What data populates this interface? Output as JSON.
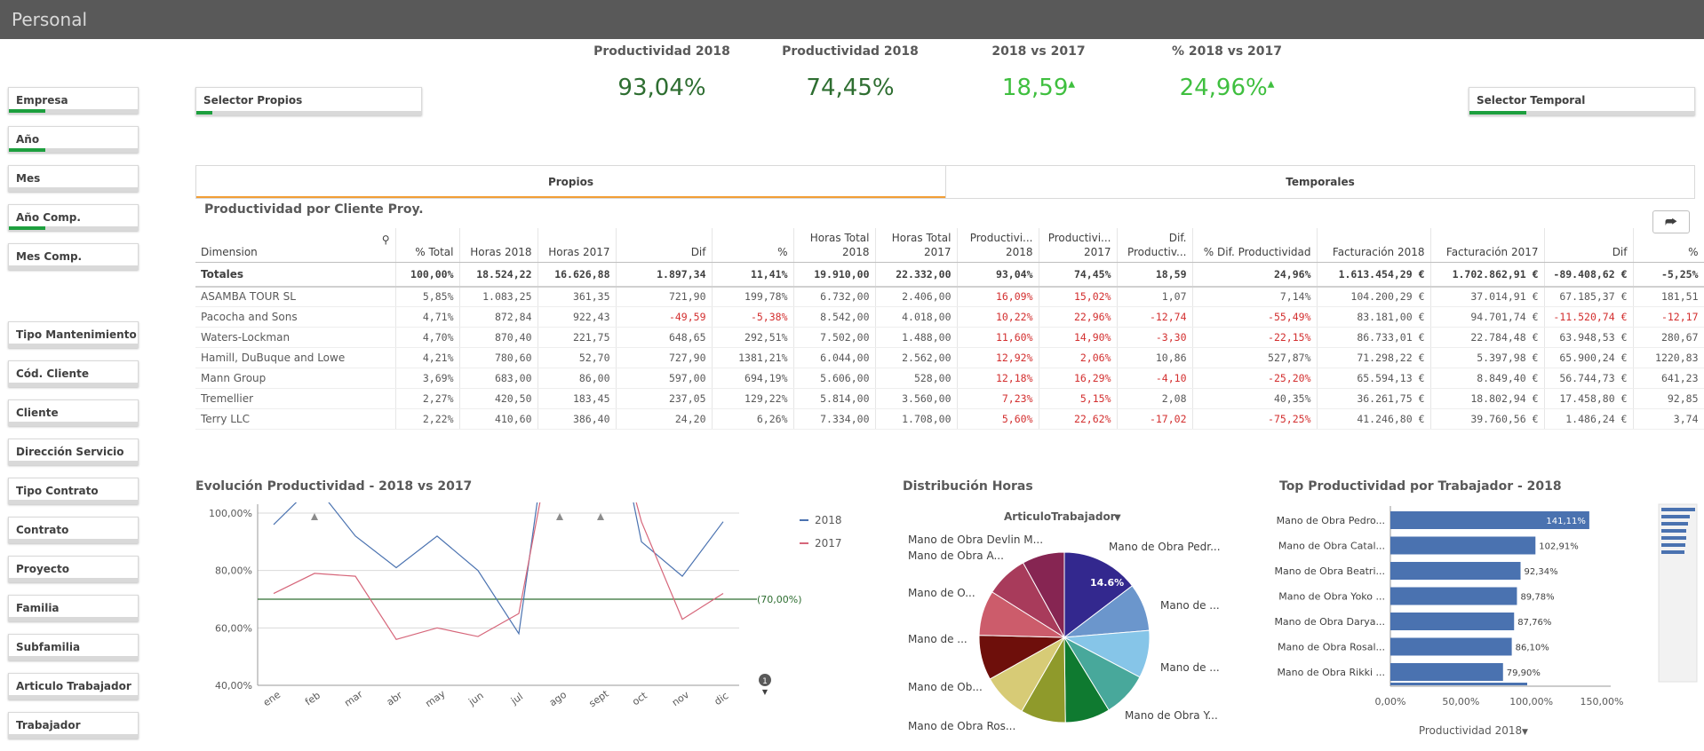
{
  "app": {
    "title": "Personal"
  },
  "filters": [
    {
      "label": "Empresa",
      "sel": 0.28
    },
    {
      "label": "Año",
      "sel": 0.28
    },
    {
      "label": "Mes",
      "sel": 0
    },
    {
      "label": "Año Comp.",
      "sel": 0.28
    },
    {
      "label": "Mes Comp.",
      "sel": 0
    },
    {
      "label": "Tipo Mantenimiento",
      "sel": 0
    },
    {
      "label": "Cód. Cliente",
      "sel": 0
    },
    {
      "label": "Cliente",
      "sel": 0
    },
    {
      "label": "Dirección Servicio",
      "sel": 0
    },
    {
      "label": "Tipo Contrato",
      "sel": 0
    },
    {
      "label": "Contrato",
      "sel": 0
    },
    {
      "label": "Proyecto",
      "sel": 0
    },
    {
      "label": "Familia",
      "sel": 0
    },
    {
      "label": "Subfamilia",
      "sel": 0
    },
    {
      "label": "Articulo Trabajador",
      "sel": 0
    },
    {
      "label": "Trabajador",
      "sel": 0
    }
  ],
  "selector_propios": "Selector Propios",
  "selector_temporal": "Selector Temporal",
  "kpis": [
    {
      "title": "Productividad 2018",
      "value": "93,04%",
      "color": "#2e6e31"
    },
    {
      "title": "Productividad 2018",
      "value": "74,45%",
      "color": "#2e6e31"
    },
    {
      "title": "2018 vs 2017",
      "value": "18,59",
      "color": "#3fbf3f",
      "arrow": "▲"
    },
    {
      "title": "% 2018 vs 2017",
      "value": "24,96%",
      "color": "#3fbf3f",
      "arrow": "▲"
    }
  ],
  "tabs": [
    "Propios",
    "Temporales"
  ],
  "table": {
    "title": "Productividad por Cliente Proy.",
    "headers": [
      "Dimension",
      "% Total",
      "Horas 2018",
      "Horas 2017",
      "Dif",
      "%",
      "Horas Total\n2018",
      "Horas Total\n2017",
      "Productivi...\n2018",
      "Productivi...\n2017",
      "Dif.\nProductiv...",
      "% Dif. Productividad",
      "Facturación 2018",
      "Facturación 2017",
      "Dif",
      "%"
    ],
    "totals": [
      "Totales",
      "100,00%",
      "18.524,22",
      "16.626,88",
      "1.897,34",
      "11,41%",
      "19.910,00",
      "22.332,00",
      "93,04%",
      "74,45%",
      "18,59",
      "24,96%",
      "1.613.454,29 €",
      "1.702.862,91 €",
      "-89.408,62 €",
      "-5,25%"
    ],
    "rows": [
      [
        "ASAMBA TOUR SL",
        "5,85%",
        "1.083,25",
        "361,35",
        "721,90",
        "199,78%",
        "6.732,00",
        "2.406,00",
        "16,09%",
        "15,02%",
        "1,07",
        "7,14%",
        "104.200,29 €",
        "37.014,91 €",
        "67.185,37 €",
        "181,51"
      ],
      [
        "Pacocha and Sons",
        "4,71%",
        "872,84",
        "922,43",
        "-49,59",
        "-5,38%",
        "8.542,00",
        "4.018,00",
        "10,22%",
        "22,96%",
        "-12,74",
        "-55,49%",
        "83.181,00 €",
        "94.701,74 €",
        "-11.520,74 €",
        "-12,17"
      ],
      [
        "Waters-Lockman",
        "4,70%",
        "870,40",
        "221,75",
        "648,65",
        "292,51%",
        "7.502,00",
        "1.488,00",
        "11,60%",
        "14,90%",
        "-3,30",
        "-22,15%",
        "86.733,01 €",
        "22.784,48 €",
        "63.948,53 €",
        "280,67"
      ],
      [
        "Hamill, DuBuque and Lowe",
        "4,21%",
        "780,60",
        "52,70",
        "727,90",
        "1381,21%",
        "6.044,00",
        "2.562,00",
        "12,92%",
        "2,06%",
        "10,86",
        "527,87%",
        "71.298,22 €",
        "5.397,98 €",
        "65.900,24 €",
        "1220,83"
      ],
      [
        "Mann Group",
        "3,69%",
        "683,00",
        "86,00",
        "597,00",
        "694,19%",
        "5.606,00",
        "528,00",
        "12,18%",
        "16,29%",
        "-4,10",
        "-25,20%",
        "65.594,13 €",
        "8.849,40 €",
        "56.744,73 €",
        "641,23"
      ],
      [
        "Tremellier",
        "2,27%",
        "420,50",
        "183,45",
        "237,05",
        "129,22%",
        "5.814,00",
        "3.560,00",
        "7,23%",
        "5,15%",
        "2,08",
        "40,35%",
        "36.261,75 €",
        "18.802,94 €",
        "17.458,80 €",
        "92,85"
      ],
      [
        "Terry LLC",
        "2,22%",
        "410,60",
        "386,40",
        "24,20",
        "6,26%",
        "7.334,00",
        "1.708,00",
        "5,60%",
        "22,62%",
        "-17,02",
        "-75,25%",
        "41.246,80 €",
        "39.760,56 €",
        "1.486,24 €",
        "3,74"
      ]
    ]
  },
  "line_chart": {
    "title": "Evolución Productividad - 2018 vs 2017",
    "ref_label": "(70,00%)",
    "badge": "1"
  },
  "pie_chart": {
    "title": "Distribución Horas",
    "dim_label": "ArticuloTrabajador",
    "slice_label": "14.6%"
  },
  "bar_chart": {
    "title": "Top Productividad por Trabajador - 2018",
    "measure_label": "Productividad 2018"
  },
  "chart_data": [
    {
      "type": "line",
      "title": "Evolución Productividad - 2018 vs 2017",
      "categories": [
        "ene",
        "feb",
        "mar",
        "abr",
        "may",
        "jun",
        "jul",
        "ago",
        "sept",
        "oct",
        "nov",
        "dic"
      ],
      "series": [
        {
          "name": "2018",
          "color": "#4a72b0",
          "values": [
            96,
            110,
            92,
            81,
            92,
            80,
            58,
            160,
            160,
            90,
            78,
            97
          ]
        },
        {
          "name": "2017",
          "color": "#d6667a",
          "values": [
            72,
            79,
            78,
            56,
            60,
            57,
            65,
            140,
            150,
            97,
            63,
            72
          ]
        }
      ],
      "ylim": [
        40,
        100
      ],
      "yticks": [
        "40,00%",
        "60,00%",
        "80,00%",
        "100,00%"
      ],
      "reference": 70
    },
    {
      "type": "pie",
      "title": "Distribución Horas",
      "slices": [
        {
          "label": "Mano de Obra Pedr...",
          "value": 14.6,
          "color": "#33288e"
        },
        {
          "label": "Mano de ...",
          "value": 9,
          "color": "#6b96cc"
        },
        {
          "label": "Mano de ...",
          "value": 9,
          "color": "#86c5e8"
        },
        {
          "label": "Mano de Obra Y...",
          "value": 8.5,
          "color": "#48a89b"
        },
        {
          "label": "",
          "value": 8.5,
          "color": "#0f7a30"
        },
        {
          "label": "Mano de Obra Ros...",
          "value": 8.5,
          "color": "#8f9a2b"
        },
        {
          "label": "Mano de Ob...",
          "value": 8.5,
          "color": "#d7cb76"
        },
        {
          "label": "Mano de ...",
          "value": 8.5,
          "color": "#6e0f0b"
        },
        {
          "label": "Mano de O...",
          "value": 8.5,
          "color": "#cc5c6b"
        },
        {
          "label": "Mano de Obra A...",
          "value": 8,
          "color": "#a83b5b"
        },
        {
          "label": "Mano de Obra Devlin M...",
          "value": 8,
          "color": "#862552"
        }
      ]
    },
    {
      "type": "bar",
      "title": "Top Productividad por Trabajador - 2018",
      "orientation": "horizontal",
      "color": "#4a72b0",
      "categories": [
        "Mano de Obra Pedro...",
        "Mano de Obra Catal...",
        "Mano de Obra Beatri...",
        "Mano de Obra Yoko ...",
        "Mano de Obra Darya...",
        "Mano de Obra Rosal...",
        "Mano de Obra Rikki ..."
      ],
      "values": [
        141.11,
        102.91,
        92.34,
        89.78,
        87.76,
        86.1,
        79.9
      ],
      "labels": [
        "141,11%",
        "102,91%",
        "92,34%",
        "89,78%",
        "87,76%",
        "86,10%",
        "79,90%"
      ],
      "xticks": [
        "0,00%",
        "50,00%",
        "100,00%",
        "150,00%"
      ],
      "xlim": [
        0,
        150
      ]
    }
  ]
}
